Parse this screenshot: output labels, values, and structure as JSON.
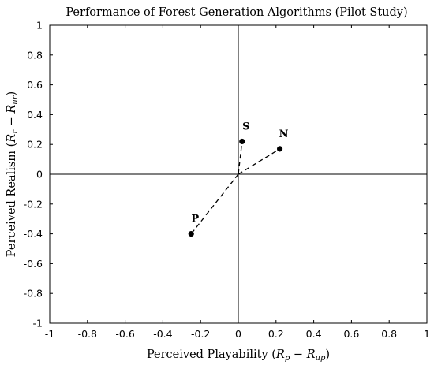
{
  "chart_data": {
    "type": "scatter",
    "title": "Performance of Forest Generation Algorithms (Pilot Study)",
    "xlabel": "Perceived Playability (R_p − R_up)",
    "ylabel": "Perceived Realism (R_r − R_ur)",
    "xlim": [
      -1,
      1
    ],
    "ylim": [
      -1,
      1
    ],
    "xticks": [
      -1,
      -0.8,
      -0.6,
      -0.4,
      -0.2,
      0,
      0.2,
      0.4,
      0.6,
      0.8,
      1
    ],
    "yticks": [
      -1,
      -0.8,
      -0.6,
      -0.4,
      -0.2,
      0,
      0.2,
      0.4,
      0.6,
      0.8,
      1
    ],
    "xtick_labels": [
      "-1",
      "-0.8",
      "-0.6",
      "-0.4",
      "-0.2",
      "0",
      "0.2",
      "0.4",
      "0.6",
      "0.8",
      "1"
    ],
    "ytick_labels": [
      "-1",
      "-0.8",
      "-0.6",
      "-0.4",
      "-0.2",
      "0",
      "0.2",
      "0.4",
      "0.6",
      "0.8",
      "1"
    ],
    "grid": false,
    "zero_axes": true,
    "origin_connectors": "dashed",
    "points": [
      {
        "label": "S",
        "x": 0.02,
        "y": 0.22
      },
      {
        "label": "N",
        "x": 0.22,
        "y": 0.17
      },
      {
        "label": "P",
        "x": -0.25,
        "y": -0.4
      }
    ]
  }
}
